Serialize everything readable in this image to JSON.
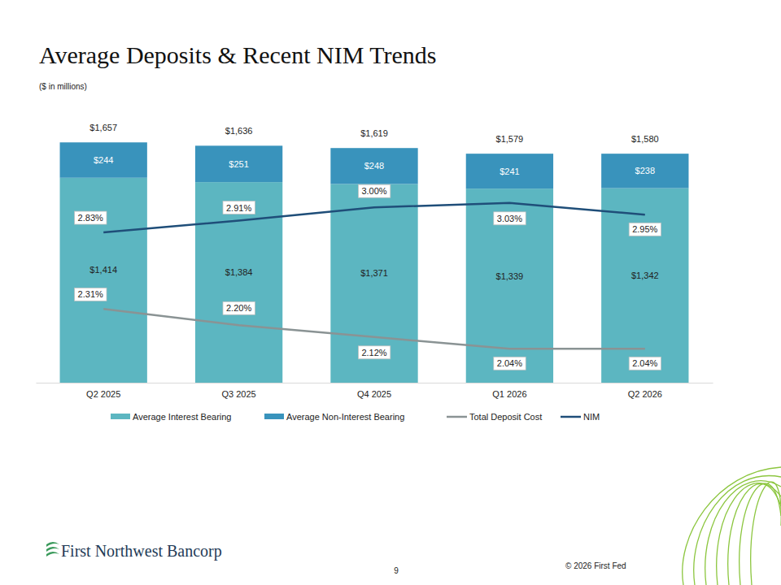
{
  "chart_data": {
    "type": "bar",
    "title": "Average Deposits & Recent NIM Trends",
    "subtitle": "($ in millions)",
    "categories": [
      "Q2 2025",
      "Q3 2025",
      "Q4 2025",
      "Q1 2026",
      "Q2 2026"
    ],
    "stacked": true,
    "data_labels": true,
    "tick_labels": "x",
    "legend": "bottom",
    "ylim": [
      0,
      1850
    ],
    "y2lim": [
      1.81,
      3.63
    ],
    "totals": [
      1657,
      1636,
      1619,
      1579,
      1580
    ],
    "total_labels": [
      "$1,657",
      "$1,636",
      "$1,619",
      "$1,579",
      "$1,580"
    ],
    "series": [
      {
        "name": "Average Interest Bearing",
        "type": "bar",
        "color": "#5cb6c1",
        "values": [
          1414,
          1384,
          1371,
          1339,
          1342
        ],
        "value_labels": [
          "$1,414",
          "$1,384",
          "$1,371",
          "$1,339",
          "$1,342"
        ]
      },
      {
        "name": "Average Non-Interest Bearing",
        "type": "bar",
        "color": "#3993bc",
        "values": [
          244,
          251,
          248,
          241,
          238
        ],
        "value_labels": [
          "$244",
          "$251",
          "$248",
          "$241",
          "$238"
        ]
      },
      {
        "name": "Total Deposit Cost",
        "type": "line",
        "axis": "y2",
        "color": "#8a9394",
        "values": [
          2.31,
          2.2,
          2.12,
          2.04,
          2.04
        ],
        "value_labels": [
          "2.31%",
          "2.20%",
          "2.12%",
          "2.04%",
          "2.04%"
        ]
      },
      {
        "name": "NIM",
        "type": "line",
        "axis": "y2",
        "color": "#1f4e79",
        "values": [
          2.83,
          2.91,
          3.0,
          3.03,
          2.95
        ],
        "value_labels": [
          "2.83%",
          "2.91%",
          "3.00%",
          "3.03%",
          "2.95%"
        ]
      }
    ]
  },
  "footer": {
    "company": "First Northwest Bancorp",
    "page_number": 9,
    "copyright": "© 2026 First Fed"
  }
}
